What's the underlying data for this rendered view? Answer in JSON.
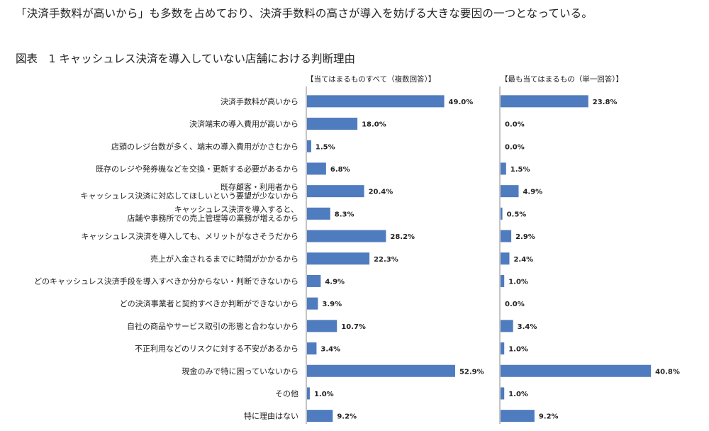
{
  "intro_text": "「決済手数料が高いから」も多数を占めており、決済手数料の高さが導入を妨げる大きな要因の一つとなっている。",
  "figure_title": "図表　1 キャッシュレス決済を導入していない店舗における判断理由",
  "colors": {
    "bar": "#4f7bbf",
    "axis": "#8a8a8a"
  },
  "chart_data": {
    "type": "bar",
    "orientation": "horizontal",
    "title": "",
    "categories": [
      [
        "決済手数料が高いから"
      ],
      [
        "決済端末の導入費用が高いから"
      ],
      [
        "店頭のレジ台数が多く、端末の導入費用がかさむから"
      ],
      [
        "既存のレジや発券機などを交換・更新する必要があるから"
      ],
      [
        "既存顧客・利用者から",
        "キャッシュレス決済に対応してほしいという要望が少ないから"
      ],
      [
        "キャッシュレス決済を導入すると、",
        "店舗や事務所での売上管理等の業務が増えるから"
      ],
      [
        "キャッシュレス決済を導入しても、メリットがなさそうだから"
      ],
      [
        "売上が入金されるまでに時間がかかるから"
      ],
      [
        "どのキャッシュレス決済手段を導入すべきか分からない・判断できないから"
      ],
      [
        "どの決済事業者と契約すべきか判断ができないから"
      ],
      [
        "自社の商品やサービス取引の形態と合わないから"
      ],
      [
        "不正利用などのリスクに対する不安があるから"
      ],
      [
        "現金のみで特に困っていないから"
      ],
      [
        "その他"
      ],
      [
        "特に理由はない"
      ]
    ],
    "series": [
      {
        "name": "【当てはまるものすべて（複数回答）】",
        "values": [
          49.0,
          18.0,
          1.5,
          6.8,
          20.4,
          8.3,
          28.2,
          22.3,
          4.9,
          3.9,
          10.7,
          3.4,
          52.9,
          1.0,
          9.2
        ],
        "labels": [
          "49.0%",
          "18.0%",
          "1.5%",
          "6.8%",
          "20.4%",
          "8.3%",
          "28.2%",
          "22.3%",
          "4.9%",
          "3.9%",
          "10.7%",
          "3.4%",
          "52.9%",
          "1.0%",
          "9.2%"
        ]
      },
      {
        "name": "【最も当てはまるもの（単一回答）】",
        "values": [
          23.8,
          0.0,
          0.0,
          1.5,
          4.9,
          0.5,
          2.9,
          2.4,
          1.0,
          0.0,
          3.4,
          1.0,
          40.8,
          1.0,
          9.2
        ],
        "labels": [
          "23.8%",
          "0.0%",
          "0.0%",
          "1.5%",
          "4.9%",
          "0.5%",
          "2.9%",
          "2.4%",
          "1.0%",
          "0.0%",
          "3.4%",
          "1.0%",
          "40.8%",
          "1.0%",
          "9.2%"
        ]
      }
    ],
    "xlim": [
      0,
      60
    ],
    "grid": false,
    "legend": "panel headers above each panel"
  }
}
